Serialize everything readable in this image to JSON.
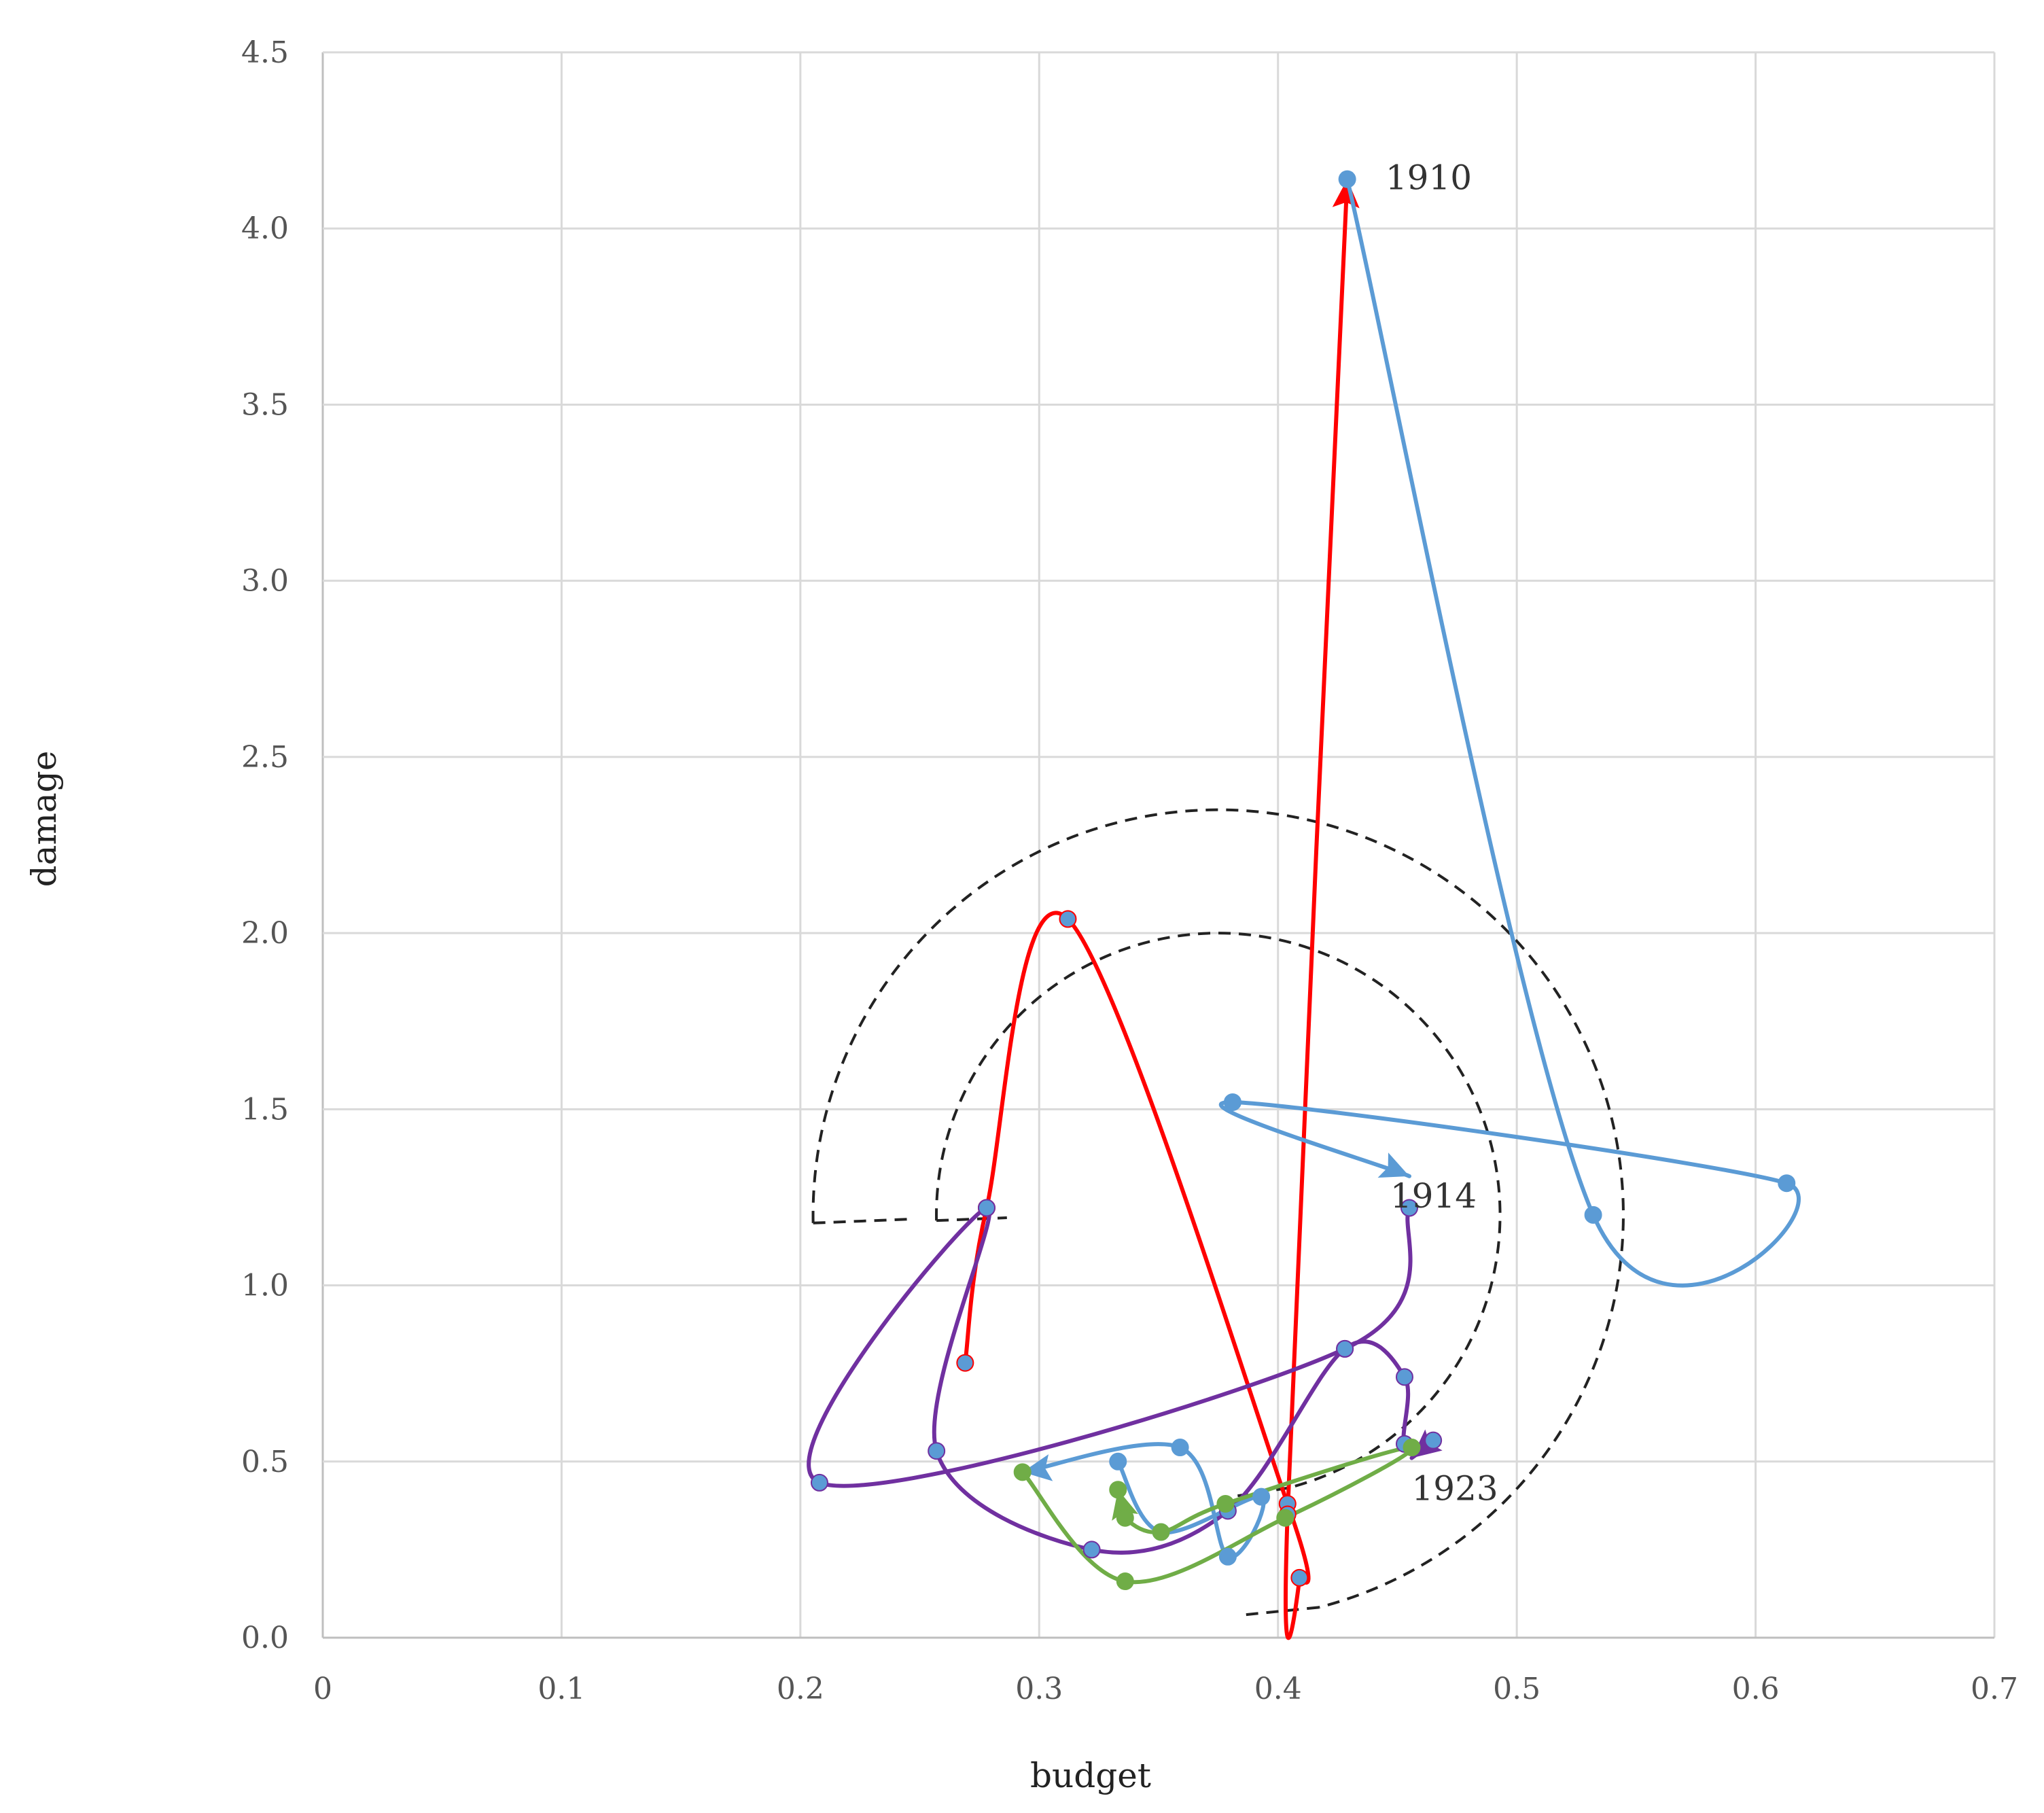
{
  "chart_data": {
    "type": "line",
    "title": "",
    "xlabel": "budget",
    "ylabel": "damage",
    "xlim": [
      0,
      0.7
    ],
    "ylim": [
      0,
      4.5
    ],
    "grid": true,
    "x_ticks": [
      "0",
      "0.1",
      "0.2",
      "0.3",
      "0.4",
      "0.5",
      "0.6",
      "0.7"
    ],
    "y_ticks": [
      "0.0",
      "0.5",
      "1.0",
      "1.5",
      "2.0",
      "2.5",
      "3.0",
      "3.5",
      "4.0",
      "4.5"
    ],
    "colors": {
      "red": "#ff0000",
      "blue": "#5b9bd5",
      "purple": "#7030a0",
      "green": "#70ad47",
      "guide": "#222222"
    },
    "series": [
      {
        "color": "#ff0000",
        "marker_fill": "#5b9bd5",
        "points": [
          [
            0.269,
            0.78
          ],
          [
            0.278,
            1.22
          ],
          [
            0.312,
            2.04
          ],
          [
            0.404,
            0.38
          ],
          [
            0.409,
            0.17
          ],
          [
            0.404,
            0.35
          ],
          [
            0.429,
            4.14
          ]
        ]
      },
      {
        "color": "#5b9bd5",
        "marker_fill": "#5b9bd5",
        "points": [
          [
            0.429,
            4.14
          ],
          [
            0.532,
            1.2
          ],
          [
            0.613,
            1.29
          ],
          [
            0.381,
            1.52
          ],
          [
            0.455,
            1.31
          ]
        ]
      },
      {
        "color": "#7030a0",
        "marker_fill": "#5b9bd5",
        "points": [
          [
            0.455,
            1.22
          ],
          [
            0.428,
            0.82
          ],
          [
            0.208,
            0.44
          ],
          [
            0.278,
            1.22
          ],
          [
            0.257,
            0.53
          ],
          [
            0.322,
            0.25
          ],
          [
            0.379,
            0.36
          ],
          [
            0.428,
            0.82
          ],
          [
            0.453,
            0.74
          ],
          [
            0.453,
            0.55
          ],
          [
            0.465,
            0.56
          ],
          [
            0.456,
            0.51
          ]
        ]
      },
      {
        "color": "#5b9bd5",
        "marker_fill": "#5b9bd5",
        "points": [
          [
            0.333,
            0.5
          ],
          [
            0.351,
            0.3
          ],
          [
            0.393,
            0.4
          ],
          [
            0.379,
            0.23
          ],
          [
            0.359,
            0.54
          ],
          [
            0.293,
            0.47
          ]
        ]
      },
      {
        "color": "#70ad47",
        "marker_fill": "#70ad47",
        "points": [
          [
            0.293,
            0.47
          ],
          [
            0.336,
            0.16
          ],
          [
            0.403,
            0.34
          ],
          [
            0.456,
            0.54
          ],
          [
            0.378,
            0.38
          ],
          [
            0.351,
            0.3
          ],
          [
            0.336,
            0.34
          ],
          [
            0.333,
            0.42
          ]
        ]
      }
    ],
    "annotations": [
      {
        "text": "1910",
        "x": 0.445,
        "y": 4.14
      },
      {
        "text": "1914",
        "x": 0.447,
        "y": 1.25
      },
      {
        "text": "1923",
        "x": 0.456,
        "y": 0.42
      }
    ],
    "guide_circles": [
      {
        "center": [
          0.375,
          1.2
        ],
        "radius_y": 1.15
      },
      {
        "center": [
          0.375,
          1.2
        ],
        "radius_y": 0.8
      }
    ]
  }
}
